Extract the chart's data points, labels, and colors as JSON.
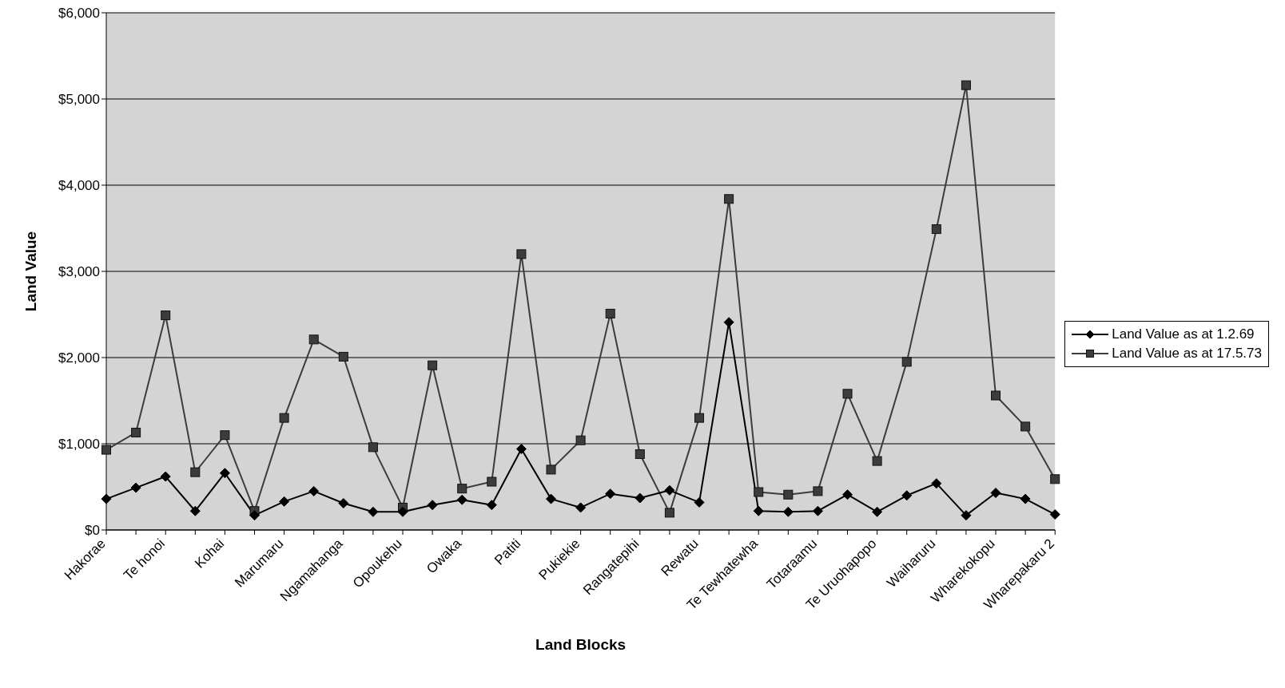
{
  "chart_data": {
    "type": "line",
    "xlabel": "Land Blocks",
    "ylabel": "Land Value",
    "categories": [
      "Hakorae",
      null,
      "Te honoi",
      null,
      "Kohai",
      null,
      "Marumaru",
      null,
      "Ngamahanga",
      null,
      "Opoukehu",
      null,
      "Owaka",
      null,
      "Patiti",
      null,
      "Pukiekie",
      null,
      "Rangatepihi",
      null,
      "Rewatu",
      null,
      "Te Tewhatewha",
      null,
      "Totaraamu",
      null,
      "Te Uruohapopo",
      null,
      "Waiharuru",
      null,
      "Wharekokopu",
      null,
      "Wharepakaru 2"
    ],
    "series": [
      {
        "name": "Land Value as at 1.2.69",
        "color": "#000000",
        "marker": "diamond",
        "values": [
          360,
          490,
          620,
          220,
          660,
          170,
          330,
          450,
          310,
          210,
          210,
          290,
          350,
          290,
          940,
          360,
          260,
          420,
          370,
          460,
          320,
          2410,
          220,
          210,
          220,
          410,
          210,
          400,
          540,
          170,
          430,
          360,
          180
        ]
      },
      {
        "name": "Land Value as at 17.5.73",
        "color": "#3c3c3c",
        "marker": "square",
        "values": [
          930,
          1130,
          2490,
          670,
          1100,
          220,
          1300,
          2210,
          2010,
          960,
          260,
          1910,
          480,
          560,
          3200,
          700,
          1040,
          2510,
          880,
          200,
          1300,
          3840,
          440,
          410,
          450,
          1580,
          800,
          1950,
          3490,
          5160,
          1560,
          1200,
          590
        ]
      }
    ],
    "ylim": [
      0,
      6000
    ],
    "yticks": [
      {
        "value": 0,
        "label": "$0"
      },
      {
        "value": 1000,
        "label": "$1,000"
      },
      {
        "value": 2000,
        "label": "$2,000"
      },
      {
        "value": 3000,
        "label": "$3,000"
      },
      {
        "value": 4000,
        "label": "$4,000"
      },
      {
        "value": 5000,
        "label": "$5,000"
      },
      {
        "value": 6000,
        "label": "$6,000"
      }
    ],
    "grid": "y",
    "legend": "right",
    "line_style": "solid"
  }
}
